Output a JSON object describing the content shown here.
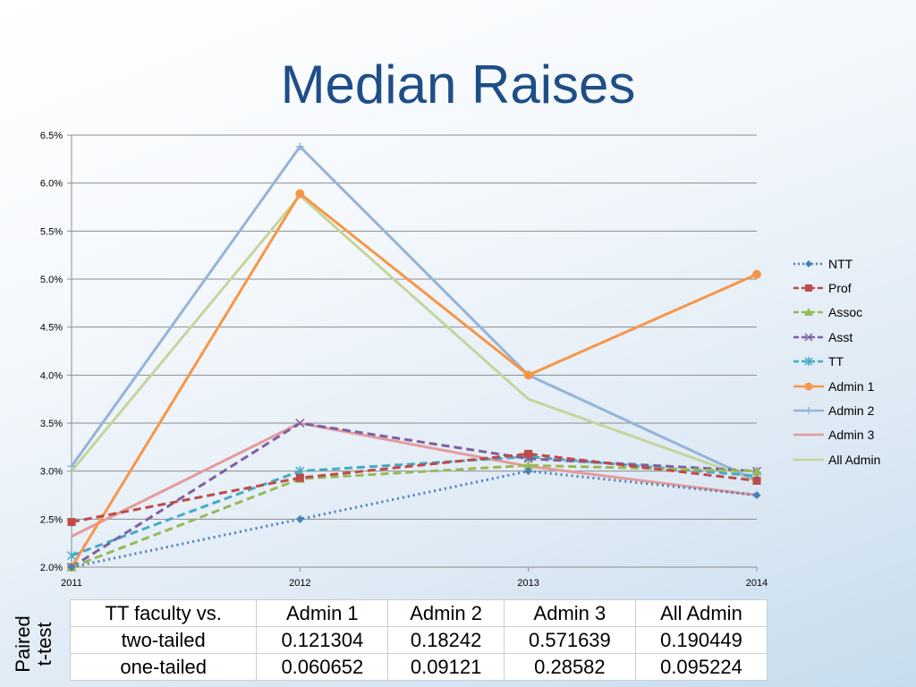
{
  "slide": {
    "title": "Median Raises"
  },
  "chart_data": {
    "type": "line",
    "x": [
      "2011",
      "2012",
      "2013",
      "2014"
    ],
    "ylim": [
      0.02,
      0.065
    ],
    "yticks": [
      "2.0%",
      "2.5%",
      "3.0%",
      "3.5%",
      "4.0%",
      "4.5%",
      "5.0%",
      "5.5%",
      "6.0%",
      "6.5%"
    ],
    "grid": true,
    "legend_position": "right",
    "series": [
      {
        "name": "NTT",
        "values": [
          0.02,
          0.025,
          0.03,
          0.0275
        ],
        "color": "#4a7ebb",
        "dash": "dotted",
        "marker": "diamond"
      },
      {
        "name": "Prof",
        "values": [
          0.0247,
          0.0293,
          0.0318,
          0.029
        ],
        "color": "#be4b48",
        "dash": "dashed",
        "marker": "square"
      },
      {
        "name": "Assoc",
        "values": [
          0.02,
          0.0292,
          0.0306,
          0.03
        ],
        "color": "#98b954",
        "dash": "dashed",
        "marker": "triangle"
      },
      {
        "name": "Asst",
        "values": [
          0.02,
          0.035,
          0.0313,
          0.03
        ],
        "color": "#7d60a0",
        "dash": "dashed",
        "marker": "x"
      },
      {
        "name": "TT",
        "values": [
          0.0212,
          0.03,
          0.0315,
          0.0295
        ],
        "color": "#46aac5",
        "dash": "dashed",
        "marker": "star"
      },
      {
        "name": "Admin 1",
        "values": [
          0.02,
          0.0589,
          0.04,
          0.0505
        ],
        "color": "#f79646",
        "dash": "solid",
        "marker": "circle"
      },
      {
        "name": "Admin 2",
        "values": [
          0.0305,
          0.0638,
          0.04,
          0.029
        ],
        "color": "#95b3d7",
        "dash": "solid",
        "marker": "plus"
      },
      {
        "name": "Admin 3",
        "values": [
          0.0232,
          0.035,
          0.0305,
          0.0275
        ],
        "color": "#e49b9b",
        "dash": "solid",
        "marker": "none"
      },
      {
        "name": "All Admin",
        "values": [
          0.03,
          0.0587,
          0.0375,
          0.029
        ],
        "color": "#c3d69b",
        "dash": "solid",
        "marker": "none"
      }
    ]
  },
  "table": {
    "side_label_line1": "Paired",
    "side_label_line2": "t-test",
    "header": [
      "TT faculty vs.",
      "Admin 1",
      "Admin 2",
      "Admin 3",
      "All Admin"
    ],
    "rows": [
      [
        "two-tailed",
        "0.121304",
        "0.18242",
        "0.571639",
        "0.190449"
      ],
      [
        "one-tailed",
        "0.060652",
        "0.09121",
        "0.28582",
        "0.095224"
      ]
    ]
  }
}
